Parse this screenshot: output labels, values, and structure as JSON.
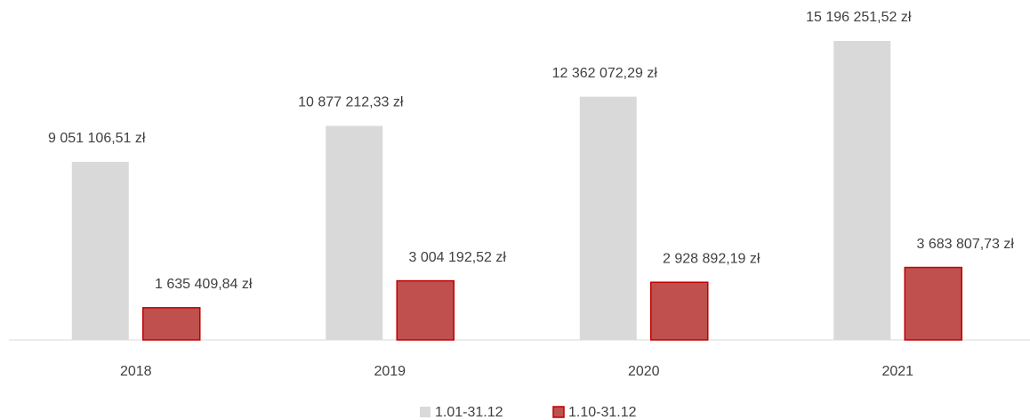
{
  "chart_data": {
    "type": "bar",
    "categories": [
      "2018",
      "2019",
      "2020",
      "2021"
    ],
    "series": [
      {
        "name": "1.01-31.12",
        "color": "#d9d9d9",
        "values": [
          9051106.51,
          10877212.33,
          12362072.29,
          15196251.52
        ],
        "value_labels": [
          "9 051 106,51 zł",
          "10 877 212,33 zł",
          "12 362 072,29 zł",
          "15 196 251,52 zł"
        ]
      },
      {
        "name": "1.10-31.12",
        "color": "#c0504d",
        "values": [
          1635409.84,
          3004192.52,
          2928892.19,
          3683807.73
        ],
        "value_labels": [
          "1 635 409,84 zł",
          "3 004 192,52 zł",
          "2 928 892,19 zł",
          "3 683 807,73 zł"
        ]
      }
    ]
  }
}
